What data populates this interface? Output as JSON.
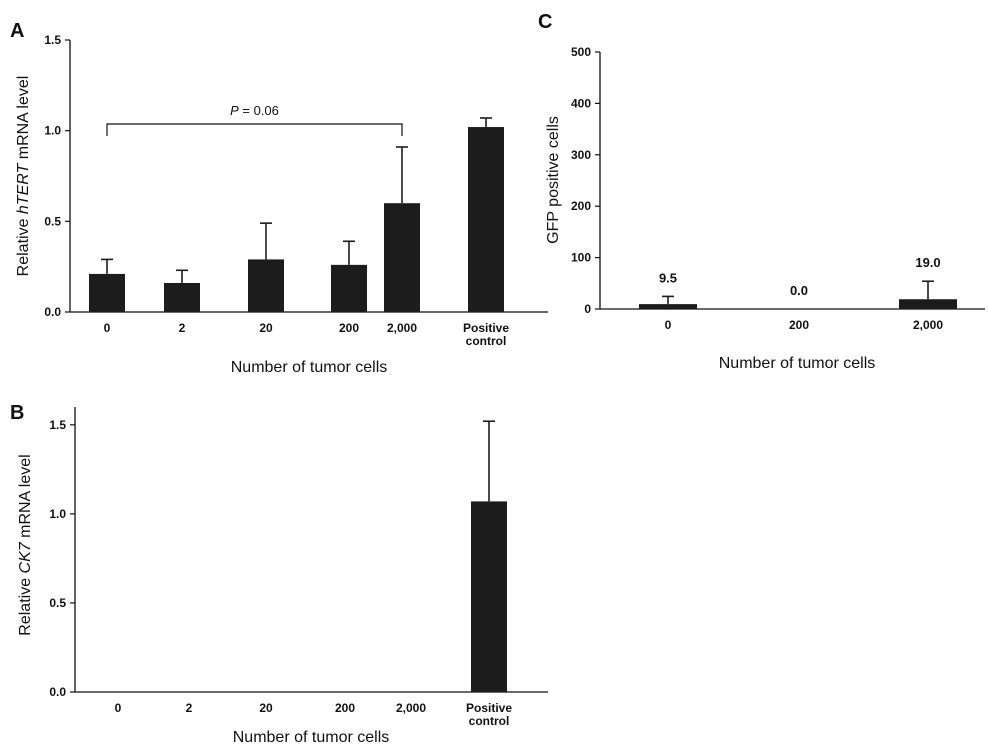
{
  "chart_data": [
    {
      "panel": "A",
      "type": "bar",
      "categories": [
        "0",
        "2",
        "20",
        "200",
        "2,000",
        "Positive control"
      ],
      "category_labels": [
        [
          "0"
        ],
        [
          "2"
        ],
        [
          "20"
        ],
        [
          "200"
        ],
        [
          "2,000"
        ],
        [
          "Positive",
          "control"
        ]
      ],
      "values": [
        0.21,
        0.16,
        0.29,
        0.26,
        0.6,
        1.02
      ],
      "errors": [
        0.08,
        0.07,
        0.2,
        0.13,
        0.31,
        0.05
      ],
      "xlabel": "Number of tumor cells",
      "ylabel_parts": [
        "Relative ",
        "hTERT",
        " mRNA level"
      ],
      "ylim": [
        0,
        1.5
      ],
      "yticks": [
        0.0,
        0.5,
        1.0,
        1.5
      ],
      "ytick_labels": [
        "0.0",
        "0.5",
        "1.0",
        "1.5"
      ],
      "annotation": {
        "text_italic": "P",
        "text_rest": " = 0.06",
        "from_category": 0,
        "to_category": 4
      }
    },
    {
      "panel": "B",
      "type": "bar",
      "categories": [
        "0",
        "2",
        "20",
        "200",
        "2,000",
        "Positive control"
      ],
      "category_labels": [
        [
          "0"
        ],
        [
          "2"
        ],
        [
          "20"
        ],
        [
          "200"
        ],
        [
          "2,000"
        ],
        [
          "Positive",
          "control"
        ]
      ],
      "values": [
        0,
        0,
        0,
        0,
        0,
        1.07
      ],
      "errors": [
        0,
        0,
        0,
        0,
        0,
        0.45
      ],
      "xlabel": "Number of tumor cells",
      "ylabel_parts": [
        "Relative ",
        "CK7",
        " mRNA level"
      ],
      "ylim": [
        0,
        1.6
      ],
      "yticks": [
        0.0,
        0.5,
        1.0,
        1.5
      ],
      "ytick_labels": [
        "0.0",
        "0.5",
        "1.0",
        "1.5"
      ]
    },
    {
      "panel": "C",
      "type": "bar",
      "categories": [
        "0",
        "200",
        "2,000"
      ],
      "category_labels": [
        [
          "0"
        ],
        [
          "200"
        ],
        [
          "2,000"
        ]
      ],
      "values": [
        9.5,
        0.0,
        19.0
      ],
      "errors": [
        15,
        0,
        35
      ],
      "data_labels": [
        "9.5",
        "0.0",
        "19.0"
      ],
      "xlabel": "Number of tumor cells",
      "ylabel_parts": [
        "GFP positive cells"
      ],
      "ylim": [
        0,
        500
      ],
      "yticks": [
        0,
        100,
        200,
        300,
        400,
        500
      ],
      "ytick_labels": [
        "0",
        "100",
        "200",
        "300",
        "400",
        "500"
      ]
    }
  ]
}
